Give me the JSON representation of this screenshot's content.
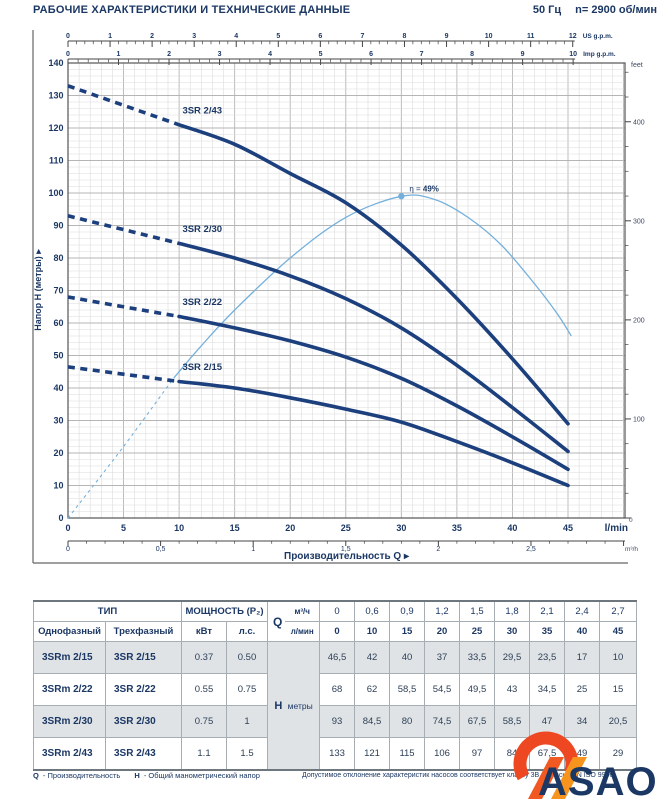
{
  "page": {
    "title": "РАБОЧИЕ ХАРАКТЕРИСТИКИ И ТЕХНИЧЕСКИЕ ДАННЫЕ",
    "frequency": "50 Гц",
    "speed": "n= 2900 об/мин"
  },
  "colors": {
    "navy": "#1b3764",
    "curve": "#1c3f7d",
    "light_blue": "#74b0dc",
    "grid_minor": "#dcdcdc",
    "grid_major": "#b5b5b5",
    "axis": "#555555",
    "stripe": "#dfe3e6",
    "orange_red": "#ee4823",
    "orange": "#f7941d",
    "orange_mid": "#f05a22"
  },
  "chart_data": {
    "type": "line",
    "x_axis": {
      "title": "Производительность Q",
      "unit": "l/min",
      "tick_labels": [
        0,
        5,
        10,
        15,
        20,
        25,
        30,
        35,
        40,
        45
      ],
      "range": [
        0,
        50
      ]
    },
    "x_axis_m3h": {
      "unit": "m³/h",
      "tick_labels": [
        0,
        0.5,
        1,
        1.5,
        2,
        2.5
      ],
      "minor_step": 0.1
    },
    "x_axis_us_gpm": {
      "unit": "US g.p.m.",
      "tick_labels": [
        0,
        1,
        2,
        3,
        4,
        5,
        6,
        7,
        8,
        9,
        10,
        11,
        12
      ],
      "minor_step": 0.2
    },
    "x_axis_imp_gpm": {
      "unit": "Imp g.p.m.",
      "tick_labels": [
        0,
        1,
        2,
        3,
        4,
        5,
        6,
        7,
        8,
        9,
        10
      ],
      "minor_step": 0.2
    },
    "y_axis": {
      "title": "Напор H (метры)",
      "tick_labels": [
        0,
        10,
        20,
        30,
        40,
        50,
        60,
        70,
        80,
        90,
        100,
        110,
        120,
        130,
        140
      ],
      "range": [
        0,
        140
      ],
      "minor_step": 2
    },
    "y_axis_feet": {
      "unit": "feet",
      "tick_labels": [
        0,
        100,
        200,
        300,
        400
      ],
      "minor_step": 25
    },
    "q_lmin": [
      0,
      10,
      15,
      20,
      25,
      30,
      35,
      40,
      45
    ],
    "series": [
      {
        "name": "3SR 2/43",
        "h_m": [
          133,
          121,
          115,
          106,
          97,
          84,
          67.5,
          49,
          29
        ],
        "dashed_until_q": 10
      },
      {
        "name": "3SR 2/30",
        "h_m": [
          93,
          84.5,
          80,
          74.5,
          67.5,
          58.5,
          47,
          34,
          20.5
        ],
        "dashed_until_q": 10
      },
      {
        "name": "3SR 2/22",
        "h_m": [
          68,
          62,
          58.5,
          54.5,
          49.5,
          43,
          34.5,
          25,
          15
        ],
        "dashed_until_q": 10
      },
      {
        "name": "3SR 2/15",
        "h_m": [
          46.5,
          42,
          40,
          37,
          33.5,
          29.5,
          23.5,
          17,
          10
        ],
        "dashed_until_q": 10
      }
    ],
    "efficiency": {
      "eta_prefix": "η = ",
      "eta_value": "49%",
      "bep_q_lmin": 30,
      "dashed_until_q": 9.5,
      "points": [
        [
          0,
          0
        ],
        [
          5,
          22
        ],
        [
          9.5,
          43
        ],
        [
          12,
          53
        ],
        [
          15,
          64
        ],
        [
          20,
          80
        ],
        [
          25,
          92.5
        ],
        [
          30,
          99
        ],
        [
          33,
          98
        ],
        [
          36,
          92.5
        ],
        [
          39,
          84
        ],
        [
          42,
          72
        ],
        [
          44,
          63
        ],
        [
          45.3,
          56
        ]
      ]
    }
  },
  "table": {
    "header": {
      "type_group": "ТИП",
      "power_group": "МОЩНОСТЬ (P₂)",
      "single_phase": "Однофазный",
      "three_phase": "Трехфазный",
      "kw": "кВт",
      "hp": "л.с.",
      "q_letter": "Q",
      "q_top_unit": "м³/ч",
      "q_bottom_unit": "л/мин",
      "m3h_values": [
        "0",
        "0,6",
        "0,9",
        "1,2",
        "1,5",
        "1,8",
        "2,1",
        "2,4",
        "2,7"
      ],
      "lmin_values": [
        "0",
        "10",
        "15",
        "20",
        "25",
        "30",
        "35",
        "40",
        "45"
      ]
    },
    "h_label": "H",
    "h_unit": "метры",
    "rows": [
      {
        "single": "3SRm 2/15",
        "three": "3SR 2/15",
        "kw": "0.37",
        "hp": "0.50",
        "values": [
          "46,5",
          "42",
          "40",
          "37",
          "33,5",
          "29,5",
          "23,5",
          "17",
          "10"
        ]
      },
      {
        "single": "3SRm 2/22",
        "three": "3SR 2/22",
        "kw": "0.55",
        "hp": "0.75",
        "values": [
          "68",
          "62",
          "58,5",
          "54,5",
          "49,5",
          "43",
          "34,5",
          "25",
          "15"
        ]
      },
      {
        "single": "3SRm 2/30",
        "three": "3SR 2/30",
        "kw": "0.75",
        "hp": "1",
        "values": [
          "93",
          "84,5",
          "80",
          "74,5",
          "67,5",
          "58,5",
          "47",
          "34",
          "20,5"
        ]
      },
      {
        "single": "3SRm 2/43",
        "three": "3SR 2/43",
        "kw": "1.1",
        "hp": "1.5",
        "values": [
          "133",
          "121",
          "115",
          "106",
          "97",
          "84",
          "67,5",
          "49",
          "29"
        ]
      }
    ]
  },
  "footer": {
    "legend": [
      {
        "symbol": "Q",
        "text": "- Производительность"
      },
      {
        "symbol": "H",
        "text": "- Общий манометрический напор"
      }
    ],
    "note": "Допустимое отклонение характеристик насосов соответствует классу 3B согласно EN ISO 9906"
  },
  "logo": {
    "text": "ASAO"
  }
}
